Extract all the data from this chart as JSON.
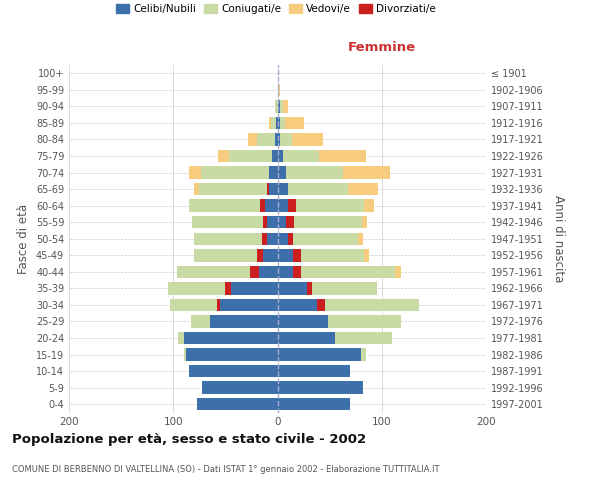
{
  "age_groups": [
    "0-4",
    "5-9",
    "10-14",
    "15-19",
    "20-24",
    "25-29",
    "30-34",
    "35-39",
    "40-44",
    "45-49",
    "50-54",
    "55-59",
    "60-64",
    "65-69",
    "70-74",
    "75-79",
    "80-84",
    "85-89",
    "90-94",
    "95-99",
    "100+"
  ],
  "birth_years": [
    "1997-2001",
    "1992-1996",
    "1987-1991",
    "1982-1986",
    "1977-1981",
    "1972-1976",
    "1967-1971",
    "1962-1966",
    "1957-1961",
    "1952-1956",
    "1947-1951",
    "1942-1946",
    "1937-1941",
    "1932-1936",
    "1927-1931",
    "1922-1926",
    "1917-1921",
    "1912-1916",
    "1907-1911",
    "1902-1906",
    "≤ 1901"
  ],
  "males": {
    "celibi": [
      77,
      72,
      85,
      88,
      90,
      65,
      55,
      45,
      18,
      14,
      10,
      10,
      12,
      8,
      8,
      5,
      2,
      1,
      0,
      0,
      0
    ],
    "coniugati": [
      0,
      0,
      0,
      2,
      5,
      18,
      45,
      55,
      70,
      60,
      65,
      68,
      68,
      65,
      65,
      42,
      18,
      5,
      2,
      0,
      0
    ],
    "vedovi": [
      0,
      0,
      0,
      0,
      0,
      0,
      0,
      0,
      0,
      0,
      0,
      0,
      0,
      5,
      12,
      10,
      8,
      2,
      0,
      0,
      0
    ],
    "divorziati": [
      0,
      0,
      0,
      0,
      0,
      0,
      3,
      5,
      8,
      6,
      5,
      4,
      5,
      2,
      0,
      0,
      0,
      0,
      0,
      0,
      0
    ]
  },
  "females": {
    "nubili": [
      70,
      82,
      70,
      80,
      55,
      48,
      38,
      28,
      15,
      15,
      10,
      8,
      10,
      10,
      8,
      5,
      2,
      2,
      2,
      0,
      0
    ],
    "coniugate": [
      0,
      0,
      0,
      5,
      55,
      70,
      90,
      62,
      90,
      60,
      62,
      65,
      65,
      58,
      55,
      35,
      12,
      5,
      3,
      1,
      0
    ],
    "vedove": [
      0,
      0,
      0,
      0,
      0,
      0,
      0,
      0,
      5,
      5,
      5,
      5,
      10,
      28,
      45,
      45,
      30,
      18,
      5,
      1,
      0
    ],
    "divorziate": [
      0,
      0,
      0,
      0,
      0,
      0,
      8,
      5,
      8,
      8,
      5,
      8,
      8,
      0,
      0,
      0,
      0,
      0,
      0,
      0,
      0
    ]
  },
  "colors": {
    "celibi_nubili": "#3d6faa",
    "coniugati": "#c8dba4",
    "vedovi": "#f7cc7e",
    "divorziati": "#cc2020"
  },
  "xlim": 200,
  "title": "Popolazione per età, sesso e stato civile - 2002",
  "subtitle": "COMUNE DI BERBENNO DI VALTELLINA (SO) - Dati ISTAT 1° gennaio 2002 - Elaborazione TUTTITALIA.IT",
  "ylabel_left": "Fasce di età",
  "ylabel_right": "Anni di nascita",
  "xlabel_femmine": "Femmine",
  "legend_labels": [
    "Celibi/Nubili",
    "Coniugati/e",
    "Vedovi/e",
    "Divorziati/e"
  ],
  "background_color": "#ffffff",
  "bar_height": 0.75
}
